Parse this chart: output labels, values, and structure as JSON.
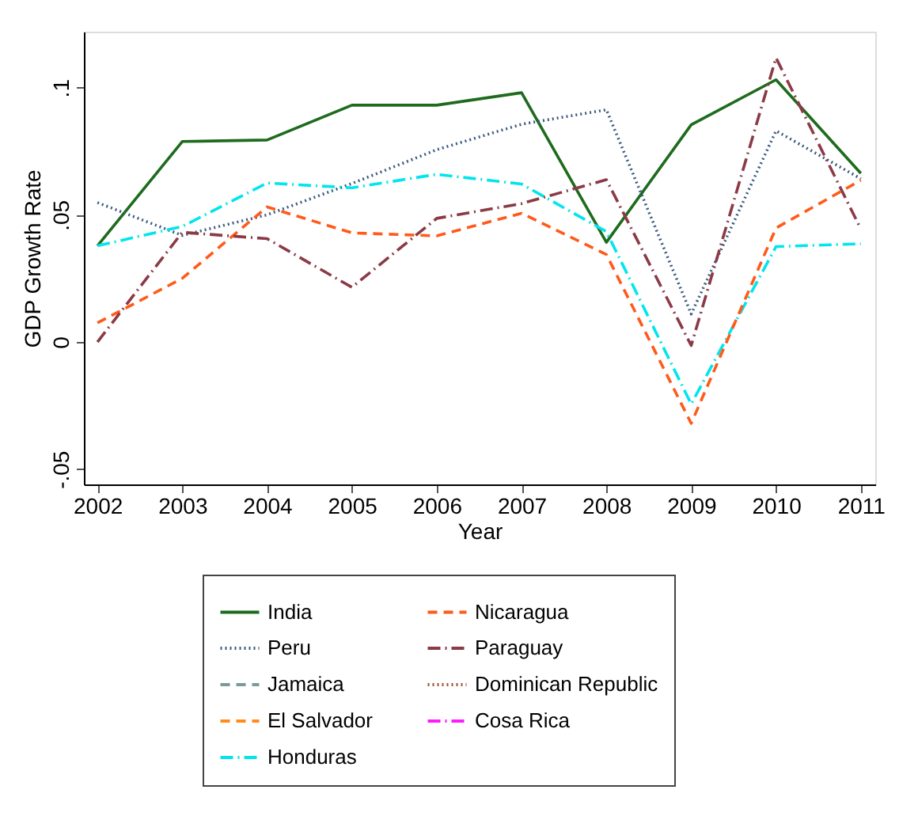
{
  "chart_data": {
    "type": "line",
    "xlabel": "Year",
    "ylabel": "GDP Growth Rate",
    "x": [
      2002,
      2003,
      2004,
      2005,
      2006,
      2007,
      2008,
      2009,
      2010,
      2011
    ],
    "xlim": [
      2001.84,
      2011.17
    ],
    "xticks": [
      2002,
      2003,
      2004,
      2005,
      2006,
      2007,
      2008,
      2009,
      2010,
      2011
    ],
    "ylim": [
      -0.056,
      0.122
    ],
    "yticks": [
      {
        "value": -0.05,
        "label": "-.05"
      },
      {
        "value": 0,
        "label": "0"
      },
      {
        "value": 0.05,
        "label": ".05"
      },
      {
        "value": 0.1,
        "label": ".1"
      }
    ],
    "grid": false,
    "legend": "bottom",
    "marker": "none",
    "series": [
      {
        "name": "India",
        "color": "#1e6b1e",
        "line_style": "solid",
        "values": [
          0.0378,
          0.0788,
          0.0794,
          0.0931,
          0.0931,
          0.098,
          0.0392,
          0.0854,
          0.1031,
          0.0663
        ]
      },
      {
        "name": "Peru",
        "color": "#3b5b80",
        "line_style": "dotted",
        "values": [
          0.0548,
          0.0419,
          0.05,
          0.0623,
          0.0756,
          0.0856,
          0.0913,
          0.011,
          0.083,
          0.0642
        ]
      },
      {
        "name": "Jamaica",
        "color": "#7a9a9a",
        "line_style": "dashed",
        "values": [
          null,
          null,
          null,
          null,
          null,
          null,
          null,
          null,
          null,
          null
        ]
      },
      {
        "name": "El Salvador",
        "color": "#ff8c1a",
        "line_style": "dashed",
        "values": [
          null,
          null,
          null,
          null,
          null,
          null,
          null,
          null,
          null,
          null
        ]
      },
      {
        "name": "Honduras",
        "color": "#00e5ee",
        "line_style": "dashdot",
        "values": [
          0.0378,
          0.0454,
          0.0625,
          0.0606,
          0.0659,
          0.0621,
          0.0434,
          -0.0244,
          0.0375,
          0.0386
        ]
      },
      {
        "name": "Nicaragua",
        "color": "#ff5a1a",
        "line_style": "dashed",
        "values": [
          0.0075,
          0.025,
          0.0531,
          0.0429,
          0.0417,
          0.0506,
          0.0344,
          -0.032,
          0.0448,
          0.0636
        ]
      },
      {
        "name": "Paraguay",
        "color": "#8b3a46",
        "line_style": "dashdot",
        "values": [
          0.0,
          0.0431,
          0.0406,
          0.0215,
          0.0486,
          0.0544,
          0.0638,
          -0.0014,
          0.1117,
          0.0444
        ]
      },
      {
        "name": "Dominican Republic",
        "color": "#a0522d",
        "line_style": "dotted",
        "values": [
          null,
          null,
          null,
          null,
          null,
          null,
          null,
          null,
          null,
          null
        ]
      },
      {
        "name": "Cosa Rica",
        "color": "#ff1aff",
        "line_style": "dashdot",
        "values": [
          null,
          null,
          null,
          null,
          null,
          null,
          null,
          null,
          null,
          null
        ]
      }
    ]
  }
}
